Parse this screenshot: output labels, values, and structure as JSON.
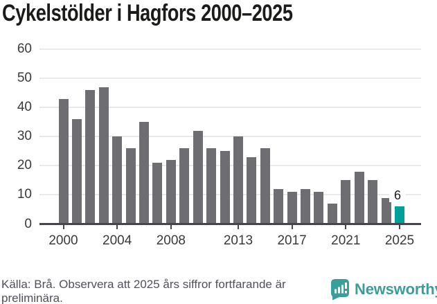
{
  "title": "Cykelstölder i Hagfors 2000–2025",
  "chart_data": {
    "type": "bar",
    "title": "Cykelstölder i Hagfors 2000–2025",
    "categories": [
      2000,
      2001,
      2002,
      2003,
      2004,
      2005,
      2006,
      2007,
      2008,
      2009,
      2010,
      2011,
      2012,
      2013,
      2014,
      2015,
      2016,
      2017,
      2018,
      2019,
      2020,
      2021,
      2022,
      2023,
      2024,
      2025
    ],
    "values": [
      43,
      36,
      46,
      47,
      30,
      26,
      35,
      21,
      22,
      26,
      32,
      26,
      25,
      30,
      23,
      26,
      12,
      11,
      12,
      11,
      7,
      15,
      18,
      15,
      9,
      6
    ],
    "xlabel": "",
    "ylabel": "",
    "ylim": [
      0,
      60
    ],
    "yticks": [
      0,
      10,
      20,
      30,
      40,
      50,
      60
    ],
    "xtick_labels": [
      2000,
      2004,
      2008,
      2013,
      2017,
      2021,
      2025
    ],
    "grid": true,
    "legend": "none",
    "highlight_category": 2025,
    "annotation": {
      "category": 2025,
      "text": "6"
    },
    "bar_color": "#6e6e72",
    "highlight_color": "#00a09a"
  },
  "footer": {
    "source_line1": "Källa: Brå. Observera att 2025 års siffror fortfarande är",
    "source_line2": "preliminära.",
    "brand": "Newsworthy",
    "brand_color": "#3b9e9a"
  }
}
